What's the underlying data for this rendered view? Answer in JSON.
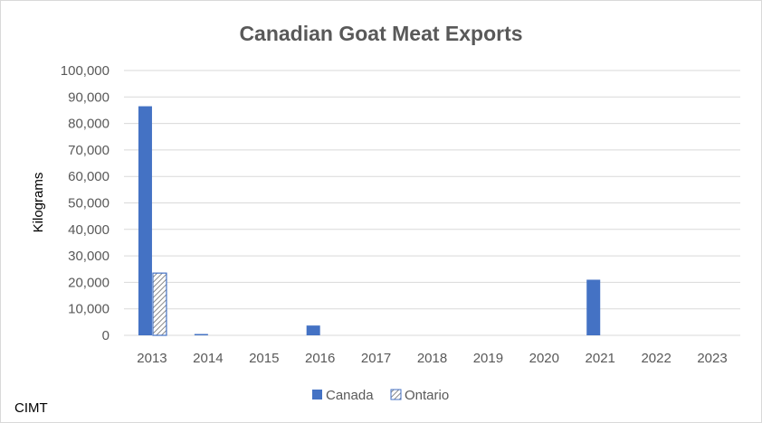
{
  "chart_data": {
    "type": "bar",
    "title": "Canadian Goat Meat Exports",
    "ylabel": "Kilograms",
    "xlabel": "",
    "categories": [
      "2013",
      "2014",
      "2015",
      "2016",
      "2017",
      "2018",
      "2019",
      "2020",
      "2021",
      "2022",
      "2023"
    ],
    "series": [
      {
        "name": "Canada",
        "values": [
          86500,
          500,
          0,
          3700,
          0,
          0,
          0,
          0,
          21000,
          0,
          0
        ],
        "color": "#4472c4",
        "pattern": "solid"
      },
      {
        "name": "Ontario",
        "values": [
          23500,
          0,
          0,
          0,
          0,
          0,
          0,
          0,
          0,
          0,
          0
        ],
        "color": "#4472c4",
        "pattern": "diagonal-hatch"
      }
    ],
    "ylim": [
      0,
      100000
    ],
    "yticks": [
      "0",
      "10,000",
      "20,000",
      "30,000",
      "40,000",
      "50,000",
      "60,000",
      "70,000",
      "80,000",
      "90,000",
      "100,000"
    ],
    "grid": true,
    "legend_position": "bottom"
  },
  "source_label": "CIMT"
}
